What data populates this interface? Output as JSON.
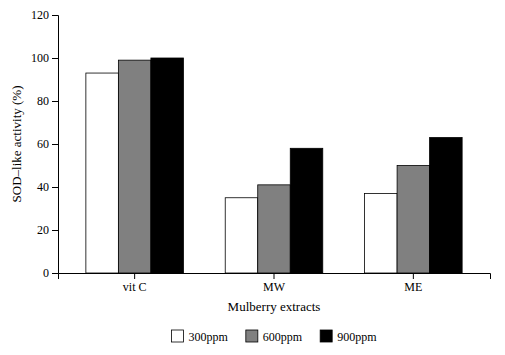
{
  "chart_data": {
    "type": "bar",
    "xlabel": "Mulberry extracts",
    "ylabel": "SOD–like activity (%)",
    "categories": [
      "vit C",
      "MW",
      "ME"
    ],
    "series": [
      {
        "name": "300ppm",
        "color": "#ffffff",
        "values": [
          93,
          35,
          37
        ]
      },
      {
        "name": "600ppm",
        "color": "#808080",
        "values": [
          99,
          41,
          50
        ]
      },
      {
        "name": "900ppm",
        "color": "#000000",
        "values": [
          100,
          58,
          63
        ]
      }
    ],
    "ylim": [
      0,
      120
    ],
    "yticks": [
      0,
      20,
      40,
      60,
      80,
      100,
      120
    ],
    "grid": false,
    "legend": "bottom"
  }
}
